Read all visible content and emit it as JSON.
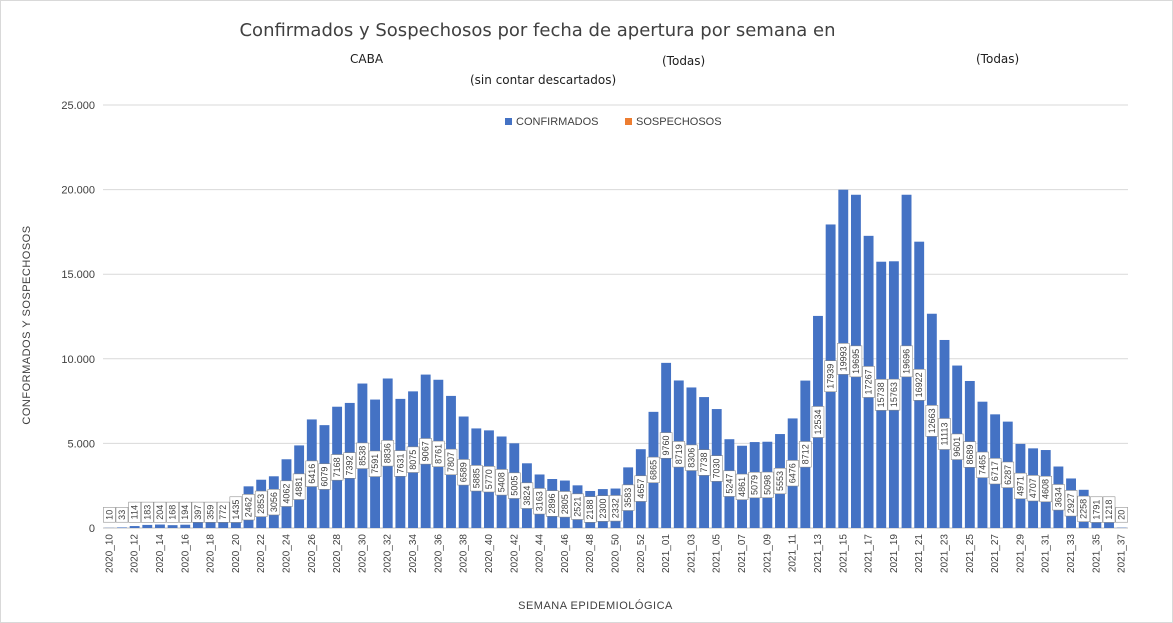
{
  "chart_data": {
    "type": "bar",
    "stacked": true,
    "title": "Confirmados y Sospechosos por fecha de apertura por semana en",
    "filters": [
      "CABA",
      "(Todas)",
      "(Todas)"
    ],
    "subtitle": "(sin contar descartados)",
    "xlabel": "SEMANA EPIDEMIOLÓGICA",
    "ylabel": "CONFORMADOS Y SOSPECHOSOS",
    "ylim": [
      0,
      25000
    ],
    "yticks": [
      "0",
      "5.000",
      "10.000",
      "15.000",
      "20.000",
      "25.000"
    ],
    "legend": {
      "position": "top",
      "colors": [
        "#4472c4",
        "#ed7d31"
      ]
    },
    "categories": [
      "2020_10",
      "2020_11",
      "2020_12",
      "2020_13",
      "2020_14",
      "2020_15",
      "2020_16",
      "2020_17",
      "2020_18",
      "2020_19",
      "2020_20",
      "2020_21",
      "2020_22",
      "2020_23",
      "2020_24",
      "2020_25",
      "2020_26",
      "2020_27",
      "2020_28",
      "2020_29",
      "2020_30",
      "2020_31",
      "2020_32",
      "2020_33",
      "2020_34",
      "2020_35",
      "2020_36",
      "2020_37",
      "2020_38",
      "2020_39",
      "2020_40",
      "2020_41",
      "2020_42",
      "2020_43",
      "2020_44",
      "2020_45",
      "2020_46",
      "2020_47",
      "2020_48",
      "2020_49",
      "2020_50",
      "2020_51",
      "2020_52",
      "2020_53",
      "2021_01",
      "2021_02",
      "2021_03",
      "2021_04",
      "2021_05",
      "2021_06",
      "2021_07",
      "2021_08",
      "2021_09",
      "2021_10",
      "2021_11",
      "2021_12",
      "2021_13",
      "2021_14",
      "2021_15",
      "2021_16",
      "2021_17",
      "2021_18",
      "2021_19",
      "2021_20",
      "2021_21",
      "2021_22",
      "2021_23",
      "2021_24",
      "2021_25",
      "2021_26",
      "2021_27",
      "2021_28",
      "2021_29",
      "2021_30",
      "2021_31",
      "2021_32",
      "2021_33",
      "2021_34",
      "2021_35",
      "2021_36",
      "2021_37"
    ],
    "x_tick_labels": [
      "2020_10",
      "",
      "2020_12",
      "",
      "2020_14",
      "",
      "2020_16",
      "",
      "2020_18",
      "",
      "2020_20",
      "",
      "2020_22",
      "",
      "2020_24",
      "",
      "2020_26",
      "",
      "2020_28",
      "",
      "2020_30",
      "",
      "2020_32",
      "",
      "2020_34",
      "",
      "2020_36",
      "",
      "2020_38",
      "",
      "2020_40",
      "",
      "2020_42",
      "",
      "2020_44",
      "",
      "2020_46",
      "",
      "2020_48",
      "",
      "2020_50",
      "",
      "2020_52",
      "",
      "2021_01",
      "",
      "2021_03",
      "",
      "2021_05",
      "",
      "2021_07",
      "",
      "2021_09",
      "",
      "2021_11",
      "",
      "2021_13",
      "",
      "2021_15",
      "",
      "2021_17",
      "",
      "2021_19",
      "",
      "2021_21",
      "",
      "2021_23",
      "",
      "2021_25",
      "",
      "2021_27",
      "",
      "2021_29",
      "",
      "2021_31",
      "",
      "2021_33",
      "",
      "2021_35",
      "",
      "2021_37"
    ],
    "series": [
      {
        "name": "CONFIRMADOS",
        "color": "#4472c4",
        "values": [
          10,
          33,
          114,
          183,
          204,
          168,
          194,
          397,
          359,
          772,
          1435,
          2462,
          2853,
          3056,
          4062,
          4881,
          6416,
          6079,
          7168,
          7392,
          8538,
          7591,
          8836,
          7631,
          8075,
          9067,
          8761,
          7807,
          6589,
          5885,
          5770,
          5408,
          5005,
          3824,
          3163,
          2896,
          2805,
          2521,
          2188,
          2300,
          2332,
          3583,
          4657,
          6865,
          9760,
          8719,
          8306,
          7738,
          7030,
          5247,
          4861,
          5079,
          5098,
          5553,
          6476,
          8712,
          12534,
          17939,
          19993,
          19695,
          17267,
          15738,
          15763,
          19696,
          16922,
          12663,
          11113,
          9601,
          8689,
          7465,
          6717,
          6287,
          4971,
          4707,
          4608,
          3634,
          2927,
          2258,
          1791,
          1218,
          20
        ]
      },
      {
        "name": "SOSPECHOSOS",
        "color": "#ed7d31",
        "values": [
          0,
          0,
          0,
          0,
          0,
          0,
          0,
          0,
          0,
          0,
          0,
          0,
          0,
          0,
          0,
          0,
          0,
          0,
          0,
          0,
          0,
          0,
          0,
          0,
          0,
          0,
          0,
          0,
          0,
          0,
          0,
          0,
          0,
          0,
          0,
          0,
          0,
          0,
          0,
          0,
          0,
          0,
          0,
          0,
          0,
          0,
          0,
          0,
          0,
          0,
          0,
          0,
          0,
          0,
          0,
          0,
          0,
          0,
          0,
          0,
          0,
          0,
          0,
          0,
          0,
          0,
          0,
          0,
          0,
          0,
          0,
          0,
          0,
          0,
          0,
          0,
          0,
          0,
          0,
          0,
          0
        ]
      }
    ]
  }
}
